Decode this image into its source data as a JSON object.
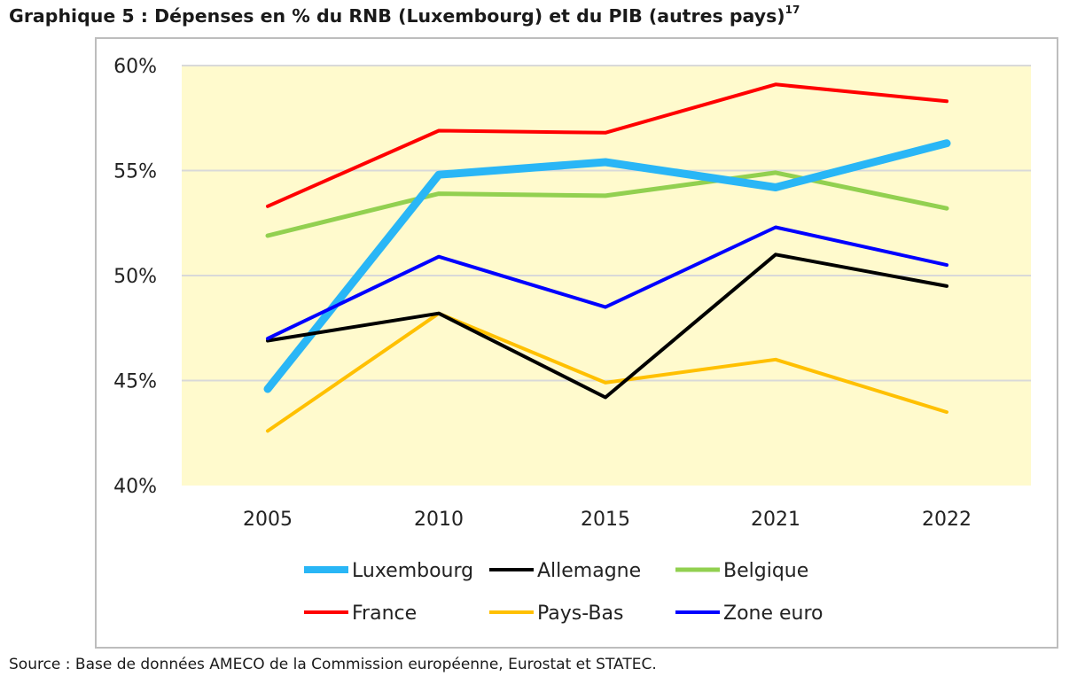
{
  "figure": {
    "title": "Graphique 5 : Dépenses en % du RNB (Luxembourg) et du PIB (autres pays)",
    "footnote_ref": "17",
    "source": "Source : Base de données AMECO de la Commission européenne, Eurostat et STATEC."
  },
  "chart_data": {
    "type": "line",
    "title": "Dépenses en % du RNB (Luxembourg) et du PIB (autres pays)",
    "xlabel": "",
    "ylabel": "",
    "categories": [
      "2005",
      "2010",
      "2015",
      "2021",
      "2022"
    ],
    "ylim": [
      40,
      60
    ],
    "yticks": [
      40,
      45,
      50,
      55,
      60
    ],
    "ytick_labels": [
      "40%",
      "45%",
      "50%",
      "55%",
      "60%"
    ],
    "grid": true,
    "legend_position": "bottom",
    "plot_background": "#FFFACD",
    "series": [
      {
        "name": "Luxembourg",
        "color": "#29B6F6",
        "values": [
          44.6,
          54.8,
          55.4,
          54.2,
          56.3
        ]
      },
      {
        "name": "Allemagne",
        "color": "#000000",
        "values": [
          46.9,
          48.2,
          44.2,
          51.0,
          49.5
        ]
      },
      {
        "name": "Belgique",
        "color": "#92D050",
        "values": [
          51.9,
          53.9,
          53.8,
          54.9,
          53.2
        ]
      },
      {
        "name": "France",
        "color": "#FF0000",
        "values": [
          53.3,
          56.9,
          56.8,
          59.1,
          58.3
        ]
      },
      {
        "name": "Pays-Bas",
        "color": "#FFC000",
        "values": [
          42.6,
          48.2,
          44.9,
          46.0,
          43.5
        ]
      },
      {
        "name": "Zone euro",
        "color": "#0000FF",
        "values": [
          47.0,
          50.9,
          48.5,
          52.3,
          50.5
        ]
      }
    ]
  }
}
